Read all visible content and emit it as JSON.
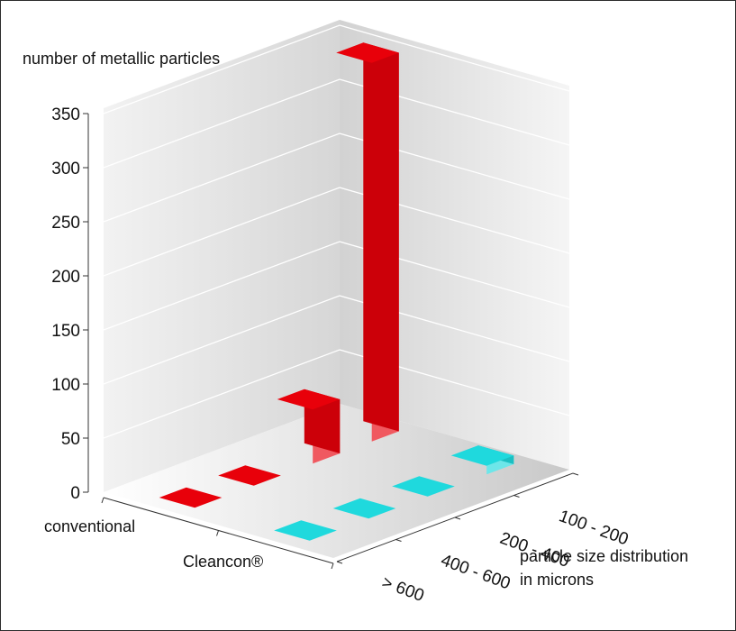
{
  "chart_data": {
    "type": "bar",
    "title": "",
    "ylabel": "number of metallic particles",
    "xlabel": [
      "particle size distribution",
      "in microns"
    ],
    "ylim": [
      0,
      350
    ],
    "yticks": [
      0,
      50,
      100,
      150,
      200,
      250,
      300,
      350
    ],
    "categories": [
      "100 - 200",
      "200 - 400",
      "400 - 600",
      "> 600"
    ],
    "series": [
      {
        "name": "conventional",
        "values": [
          350,
          50,
          0,
          0
        ],
        "color": "#e8000a"
      },
      {
        "name": "Cleancon®",
        "values": [
          8,
          0,
          0,
          0
        ],
        "color": "#1fd9dd"
      }
    ],
    "grid": true,
    "legend": "none"
  }
}
